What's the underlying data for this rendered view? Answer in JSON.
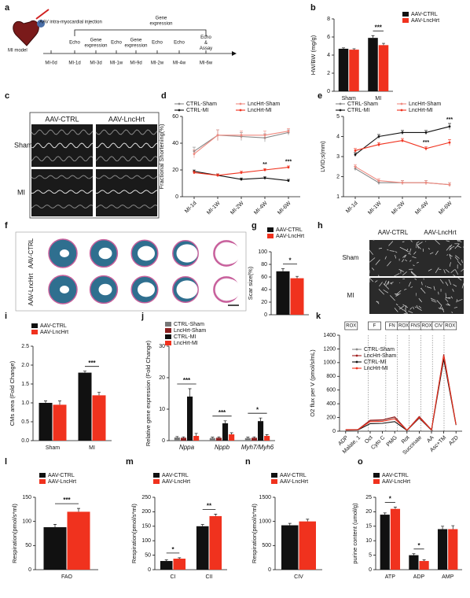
{
  "figure": {
    "a": {
      "panel": "a",
      "model": "MI model",
      "injection": "AAV intra-myocardial injection",
      "ticks": [
        "MI-0d",
        "MI-1d",
        "MI-3d",
        "MI-1w",
        "MI-9d",
        "MI-2w",
        "MI-4w",
        "MI-6w"
      ],
      "events": [
        null,
        "Echo",
        "Gene expression",
        "Echo",
        "Gene expression",
        "Echo",
        "Echo",
        "Echo & Assay"
      ],
      "bracket": "Gene expression"
    },
    "c": {
      "panel": "c",
      "columns": [
        "AAV-CTRL",
        "AAV-LncHrt"
      ],
      "rows": [
        "Sham",
        "MI"
      ]
    },
    "f": {
      "panel": "f",
      "rows": [
        "AAV-CTRL",
        "AAV-LncHrt"
      ]
    },
    "h": {
      "panel": "h",
      "columns": [
        "AAV-CTRL",
        "AAV-LncHrt"
      ],
      "rows": [
        "Sham",
        "MI"
      ]
    }
  },
  "chart_data": [
    {
      "panel": "b",
      "type": "bar",
      "y_label": "HW/BW (mg/g)",
      "categories": [
        "Sham",
        "MI"
      ],
      "series": [
        {
          "name": "AAV-CTRL",
          "color": "#111111",
          "values": [
            4.7,
            5.9
          ],
          "errors": [
            0.1,
            0.25
          ]
        },
        {
          "name": "AAV-LncHrt",
          "color": "#f0321e",
          "values": [
            4.6,
            5.1
          ],
          "errors": [
            0.1,
            0.2
          ]
        }
      ],
      "ylim": [
        0,
        8
      ],
      "yticks": [
        0,
        2,
        4,
        6,
        8
      ],
      "legend": "right",
      "annotations": [
        {
          "text": "***",
          "category": 1
        }
      ]
    },
    {
      "panel": "d",
      "type": "line",
      "y_label": "Fractional Shortening(%)",
      "categories": [
        "MI-1d",
        "MI-1W",
        "MI-2W",
        "MI-4W",
        "MI-6W"
      ],
      "series": [
        {
          "name": "CTRL-Sham",
          "color": "#888888",
          "values": [
            34,
            46,
            45,
            44,
            48
          ],
          "errors": [
            3,
            4,
            3,
            3,
            2
          ]
        },
        {
          "name": "CTRL-MI",
          "color": "#111111",
          "values": [
            19,
            16,
            13,
            14,
            12
          ],
          "errors": [
            1,
            1,
            1,
            1,
            1
          ]
        },
        {
          "name": "LncHrt-Sham",
          "color": "#f08a80",
          "values": [
            32,
            46,
            46,
            46,
            49
          ],
          "errors": [
            3,
            4,
            3,
            3,
            2
          ]
        },
        {
          "name": "LncHrt-MI",
          "color": "#f0321e",
          "values": [
            18,
            16,
            18,
            20,
            22
          ],
          "errors": [
            1,
            1,
            1,
            1,
            1
          ]
        }
      ],
      "ylim": [
        0,
        60
      ],
      "yticks": [
        0,
        20,
        40,
        60
      ],
      "legend": "top",
      "annotations": [
        {
          "text": "**",
          "category": 3,
          "series": 3
        },
        {
          "text": "***",
          "category": 4,
          "series": 3
        }
      ]
    },
    {
      "panel": "e",
      "type": "line",
      "y_label": "LVID;s(mm)",
      "categories": [
        "MI-1d",
        "MI-1W",
        "MI-2W",
        "MI-4W",
        "MI-6W"
      ],
      "series": [
        {
          "name": "CTRL-Sham",
          "color": "#888888",
          "values": [
            2.4,
            1.7,
            1.7,
            1.7,
            1.6
          ],
          "errors": [
            0.1,
            0.1,
            0.1,
            0.1,
            0.1
          ]
        },
        {
          "name": "CTRL-MI",
          "color": "#111111",
          "values": [
            3.1,
            4.0,
            4.2,
            4.2,
            4.5
          ],
          "errors": [
            0.1,
            0.1,
            0.1,
            0.1,
            0.15
          ]
        },
        {
          "name": "LncHrt-Sham",
          "color": "#f08a80",
          "values": [
            2.5,
            1.8,
            1.7,
            1.7,
            1.6
          ],
          "errors": [
            0.1,
            0.1,
            0.1,
            0.1,
            0.1
          ]
        },
        {
          "name": "LncHrt-MI",
          "color": "#f0321e",
          "values": [
            3.3,
            3.6,
            3.8,
            3.4,
            3.7
          ],
          "errors": [
            0.1,
            0.1,
            0.1,
            0.1,
            0.15
          ]
        }
      ],
      "ylim": [
        1,
        5
      ],
      "yticks": [
        1,
        2,
        3,
        4,
        5
      ],
      "legend": "top",
      "annotations": [
        {
          "text": "***",
          "category": 3,
          "series": 3
        },
        {
          "text": "***",
          "category": 4,
          "series": 1
        }
      ]
    },
    {
      "panel": "g",
      "type": "bar",
      "y_label": "Scar size(%)",
      "categories": [
        null
      ],
      "series": [
        {
          "name": "AAV-CTRL",
          "color": "#111111",
          "values": [
            69
          ],
          "errors": [
            4
          ]
        },
        {
          "name": "AAV-LncHrt",
          "color": "#f0321e",
          "values": [
            58
          ],
          "errors": [
            3
          ]
        }
      ],
      "ylim": [
        0,
        100
      ],
      "yticks": [
        0,
        20,
        40,
        60,
        80,
        100
      ],
      "legend": "top",
      "annotations": [
        {
          "text": "*",
          "category": 0
        }
      ]
    },
    {
      "panel": "i",
      "type": "bar",
      "y_label": "CMs area (Fold Change)",
      "categories": [
        "Sham",
        "MI"
      ],
      "series": [
        {
          "name": "AAV-CTRL",
          "color": "#111111",
          "values": [
            1.0,
            1.8
          ],
          "errors": [
            0.05,
            0.04
          ]
        },
        {
          "name": "AAV-LncHrt",
          "color": "#f0321e",
          "values": [
            0.95,
            1.2
          ],
          "errors": [
            0.1,
            0.08
          ]
        }
      ],
      "ylim": [
        0,
        2.5
      ],
      "yticks": [
        {
          "value": 0,
          "label": "0.0"
        },
        0.5,
        {
          "value": 1,
          "label": "1.0"
        },
        1.5,
        {
          "value": 2,
          "label": "2.0"
        },
        2.5
      ],
      "legend": "top",
      "annotations": [
        {
          "text": "***",
          "category": 1
        }
      ]
    },
    {
      "panel": "j",
      "type": "bar",
      "y_label": "Relative gene expression (Fold Change)",
      "categories": [
        "Nppa",
        "Nppb",
        "Myh7/Myh6"
      ],
      "category_style": "italic",
      "series": [
        {
          "name": "CTRL-Sham",
          "color": "#777777",
          "values": [
            1.0,
            0.8,
            0.8
          ],
          "errors": [
            0.3,
            0.3,
            0.3
          ]
        },
        {
          "name": "LncHrt-Sham",
          "color": "#8b1f1f",
          "values": [
            0.9,
            0.9,
            0.9
          ],
          "errors": [
            0.3,
            0.3,
            0.3
          ]
        },
        {
          "name": "CTRL-MI",
          "color": "#111111",
          "values": [
            14,
            5.5,
            6.2
          ],
          "errors": [
            2.5,
            0.8,
            1.0
          ]
        },
        {
          "name": "LncHrt-MI",
          "color": "#f0321e",
          "values": [
            1.5,
            2.0,
            1.5
          ],
          "errors": [
            0.8,
            0.5,
            0.4
          ]
        }
      ],
      "ylim": [
        0,
        30
      ],
      "yticks": [
        0,
        10,
        20,
        30
      ],
      "legend": "top",
      "annotations": [
        {
          "text": "***",
          "category": 0
        },
        {
          "text": "***",
          "category": 1
        },
        {
          "text": "*",
          "category": 2
        }
      ]
    },
    {
      "panel": "k",
      "type": "line",
      "y_label": "O2 flux per V (pmol/s/mL)",
      "categories": [
        "ADP",
        "Malate, 1",
        "Oct",
        "Cyto C",
        "PMG",
        "Rot",
        "Succinate",
        "AA",
        "Asc+TM",
        "AZD"
      ],
      "bands": [
        "ROX",
        "F",
        "FN",
        "ROX",
        "FNS",
        "ROX",
        "CIV",
        "ROX"
      ],
      "series": [
        {
          "name": "CTRL-Sham",
          "color": "#888888",
          "values": [
            20,
            22,
            150,
            160,
            200,
            15,
            210,
            20,
            1100,
            100
          ]
        },
        {
          "name": "LncHrt-Sham",
          "color": "#a01e1e",
          "values": [
            22,
            24,
            160,
            165,
            210,
            15,
            215,
            20,
            1120,
            100
          ]
        },
        {
          "name": "CTRL-MI",
          "color": "#111111",
          "values": [
            15,
            18,
            110,
            115,
            140,
            12,
            190,
            15,
            1050,
            90
          ]
        },
        {
          "name": "LncHrt-MI",
          "color": "#f0321e",
          "values": [
            20,
            22,
            140,
            145,
            180,
            15,
            200,
            18,
            1100,
            95
          ]
        }
      ],
      "ylim": [
        0,
        1400
      ],
      "yticks": [
        0,
        200,
        400,
        600,
        800,
        1000,
        1200,
        1400
      ],
      "legend": "top-left"
    },
    {
      "panel": "l",
      "type": "bar",
      "y_label": "Respiration(pmol/s*ml)",
      "categories": [
        "FAO"
      ],
      "series": [
        {
          "name": "AAV-CTRL",
          "color": "#111111",
          "values": [
            88
          ],
          "errors": [
            6
          ]
        },
        {
          "name": "AAV-LncHrt",
          "color": "#f0321e",
          "values": [
            120
          ],
          "errors": [
            7
          ]
        }
      ],
      "ylim": [
        0,
        150
      ],
      "yticks": [
        0,
        50,
        100,
        150
      ],
      "legend": "top",
      "annotations": [
        {
          "text": "***",
          "category": 0
        }
      ]
    },
    {
      "panel": "m",
      "type": "bar",
      "y_label": "Respiration(pmol/s*ml)",
      "categories": [
        "CI",
        "CII"
      ],
      "series": [
        {
          "name": "AAV-CTRL",
          "color": "#111111",
          "values": [
            30,
            150
          ],
          "errors": [
            4,
            6
          ]
        },
        {
          "name": "AAV-LncHrt",
          "color": "#f0321e",
          "values": [
            38,
            185
          ],
          "errors": [
            3,
            7
          ]
        }
      ],
      "ylim": [
        0,
        250
      ],
      "yticks": [
        0,
        50,
        100,
        150,
        200,
        250
      ],
      "legend": "top",
      "annotations": [
        {
          "text": "*",
          "category": 0
        },
        {
          "text": "**",
          "category": 1
        }
      ]
    },
    {
      "panel": "n",
      "type": "bar",
      "y_label": "Respiration(pmol/s*ml)",
      "categories": [
        "CIV"
      ],
      "series": [
        {
          "name": "AAV-CTRL",
          "color": "#111111",
          "values": [
            920
          ],
          "errors": [
            40
          ]
        },
        {
          "name": "AAV-LncHrt",
          "color": "#f0321e",
          "values": [
            1000
          ],
          "errors": [
            45
          ]
        }
      ],
      "ylim": [
        0,
        1500
      ],
      "yticks": [
        0,
        500,
        1000,
        1500
      ],
      "legend": "top"
    },
    {
      "panel": "o",
      "type": "bar",
      "y_label": "purine content (umol/g)",
      "categories": [
        "ATP",
        "ADP",
        "AMP"
      ],
      "series": [
        {
          "name": "AAV-CTRL",
          "color": "#111111",
          "values": [
            19,
            5,
            14
          ],
          "errors": [
            0.6,
            0.5,
            1.0
          ]
        },
        {
          "name": "AAV-LncHrt",
          "color": "#f0321e",
          "values": [
            21,
            3,
            14
          ],
          "errors": [
            0.6,
            0.4,
            1.2
          ]
        }
      ],
      "ylim": [
        0,
        25
      ],
      "yticks": [
        0,
        5,
        10,
        15,
        20,
        25
      ],
      "legend": "top",
      "annotations": [
        {
          "text": "*",
          "category": 0
        },
        {
          "text": "*",
          "category": 1
        }
      ]
    }
  ]
}
